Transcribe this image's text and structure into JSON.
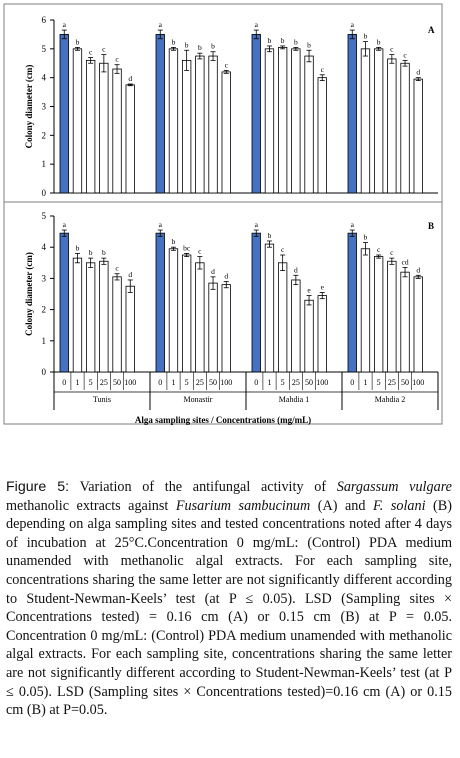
{
  "chart_data": [
    {
      "type": "bar",
      "panel": "A",
      "ylabel": "Colony diameter (cm)",
      "ylim": [
        0,
        6
      ],
      "yticks": [
        0,
        1,
        2,
        3,
        4,
        5,
        6
      ],
      "groups": [
        {
          "site": "Tunis",
          "values": [
            5.5,
            5.0,
            4.6,
            4.5,
            4.3,
            3.75
          ],
          "errors": [
            0.15,
            0.05,
            0.1,
            0.3,
            0.15,
            0.03
          ],
          "letters": [
            "a",
            "b",
            "c",
            "c",
            "c",
            "d"
          ]
        },
        {
          "site": "Monastir",
          "values": [
            5.5,
            5.0,
            4.6,
            4.75,
            4.75,
            4.2
          ],
          "errors": [
            0.15,
            0.05,
            0.35,
            0.1,
            0.15,
            0.05
          ],
          "letters": [
            "a",
            "b",
            "b",
            "b",
            "b",
            "c"
          ]
        },
        {
          "site": "Mahdia 1",
          "values": [
            5.5,
            5.0,
            5.05,
            5.0,
            4.75,
            4.0
          ],
          "errors": [
            0.15,
            0.1,
            0.05,
            0.05,
            0.2,
            0.1
          ],
          "letters": [
            "a",
            "b",
            "b",
            "b",
            "b",
            "c"
          ]
        },
        {
          "site": "Mahdia 2",
          "values": [
            5.5,
            5.0,
            5.0,
            4.65,
            4.5,
            3.95
          ],
          "errors": [
            0.15,
            0.25,
            0.05,
            0.15,
            0.1,
            0.05
          ],
          "letters": [
            "a",
            "b",
            "b",
            "c",
            "c",
            "d"
          ]
        }
      ]
    },
    {
      "type": "bar",
      "panel": "B",
      "ylabel": "Colony diameter (cm)",
      "ylim": [
        0,
        5
      ],
      "yticks": [
        0,
        1,
        2,
        3,
        4,
        5
      ],
      "groups": [
        {
          "site": "Tunis",
          "values": [
            4.45,
            3.65,
            3.5,
            3.55,
            3.05,
            2.75
          ],
          "errors": [
            0.1,
            0.15,
            0.15,
            0.1,
            0.1,
            0.2
          ],
          "letters": [
            "a",
            "b",
            "b",
            "b",
            "c",
            "d"
          ]
        },
        {
          "site": "Monastir",
          "values": [
            4.45,
            3.95,
            3.75,
            3.5,
            2.85,
            2.8
          ],
          "errors": [
            0.1,
            0.05,
            0.05,
            0.2,
            0.2,
            0.1
          ],
          "letters": [
            "a",
            "b",
            "bc",
            "c",
            "d",
            "d"
          ]
        },
        {
          "site": "Mahdia 1",
          "values": [
            4.45,
            4.1,
            3.5,
            2.95,
            2.3,
            2.45
          ],
          "errors": [
            0.1,
            0.1,
            0.25,
            0.15,
            0.15,
            0.1
          ],
          "letters": [
            "a",
            "b",
            "c",
            "d",
            "e",
            "e"
          ]
        },
        {
          "site": "Mahdia 2",
          "values": [
            4.45,
            3.95,
            3.7,
            3.55,
            3.2,
            3.05
          ],
          "errors": [
            0.1,
            0.2,
            0.05,
            0.1,
            0.15,
            0.05
          ],
          "letters": [
            "a",
            "b",
            "c",
            "c",
            "cd",
            "d"
          ]
        }
      ]
    }
  ],
  "concentrations": [
    "0",
    "1",
    "5",
    "25",
    "50",
    "100"
  ],
  "xlabel": "Alga sampling sites / Concentrations (mg/mL)",
  "colors": {
    "control": "#4472c4",
    "treated": "#ffffff",
    "outline": "#000000"
  },
  "caption": {
    "label": "Figure 5:",
    "text_1": " Variation of the antifungal activity of ",
    "species_1": "Sargassum vulgare",
    "text_2": " methanolic extracts against ",
    "species_2": "Fusarium sambucinum",
    "text_3": " (A) and ",
    "species_3": "F. solani",
    "text_4": " (B) depending on alga sampling sites and tested concentrations noted after 4 days of incubation at 25°C.Concentration 0 mg/mL: (Control) PDA medium unamended with methanolic algal extracts. For each sampling site, concentrations sharing the same letter are not significantly different according to Student-Newman-Keels’ test (at P ≤ 0.05). LSD (Sampling sites × Concentrations tested) = 0.16 cm (A) or 0.15 cm (B) at P = 0.05. Concentration 0 mg/mL: (Control) PDA medium unamended with methanolic algal extracts. For each sampling site, concentrations sharing the same letter are not significantly different according to Student-Newman-Keels’ test (at P ≤ 0.05). LSD (Sampling sites × Concentrations tested)=0.16 cm (A) or 0.15 cm (B) at P=0.05."
  }
}
